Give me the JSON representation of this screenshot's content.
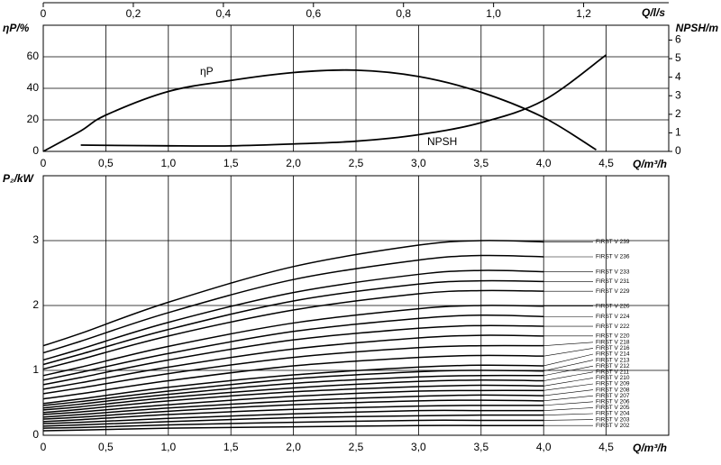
{
  "chart_data": [
    {
      "type": "line",
      "x_label": "Q/m³/h",
      "y_label": "ηP/%",
      "y2_label": "NPSH/m",
      "x2_label": "Q/l/s",
      "xlim": [
        0,
        5
      ],
      "xticks": [
        0,
        {
          "value": 0.5,
          "label": "0,5"
        },
        {
          "value": 1,
          "label": "1,0"
        },
        {
          "value": 1.5,
          "label": "1,5"
        },
        {
          "value": 2,
          "label": "2,0"
        },
        {
          "value": 2.5,
          "label": "2,5"
        },
        {
          "value": 3,
          "label": "3,0"
        },
        {
          "value": 3.5,
          "label": "3,5"
        },
        {
          "value": 4,
          "label": "4,0"
        },
        {
          "value": 4.5,
          "label": "4,5"
        }
      ],
      "x2lim": [
        0,
        1.389
      ],
      "x2ticks": [
        0,
        {
          "value": 0.2,
          "label": "0,2"
        },
        {
          "value": 0.4,
          "label": "0,4"
        },
        {
          "value": 0.6,
          "label": "0,6"
        },
        {
          "value": 0.8,
          "label": "0,8"
        },
        {
          "value": 1,
          "label": "1,0"
        },
        {
          "value": 1.2,
          "label": "1,2"
        }
      ],
      "ylim": [
        0,
        80
      ],
      "yticks": [
        0,
        20,
        40,
        60
      ],
      "y2lim": [
        0,
        6.8
      ],
      "y2ticks": [
        0,
        1,
        2,
        3,
        4,
        5,
        6
      ],
      "grid": true,
      "series": [
        {
          "name": "ηP",
          "color": "#000000",
          "x": [
            0,
            0.3,
            0.5,
            1,
            1.5,
            2,
            2.5,
            3,
            3.5,
            4,
            4.42
          ],
          "values": [
            0,
            13,
            23,
            38,
            45,
            50,
            51.5,
            47.5,
            37.5,
            21.5,
            1
          ]
        },
        {
          "name": "NPSH",
          "color": "#000000",
          "axis": "y2",
          "x": [
            0.3,
            1,
            1.5,
            2,
            2.5,
            3,
            3.5,
            4,
            4.5
          ],
          "values": [
            0.34,
            0.3,
            0.3,
            0.4,
            0.55,
            0.9,
            1.55,
            2.75,
            5.2
          ]
        }
      ]
    },
    {
      "type": "line",
      "x_label": "Q/m³/h",
      "y_label": "P₂/kW",
      "xlim": [
        0,
        5
      ],
      "xticks": [
        0,
        {
          "value": 0.5,
          "label": "0,5"
        },
        {
          "value": 1,
          "label": "1,0"
        },
        {
          "value": 1.5,
          "label": "1,5"
        },
        {
          "value": 2,
          "label": "2,0"
        },
        {
          "value": 2.5,
          "label": "2,5"
        },
        {
          "value": 3,
          "label": "3,0"
        },
        {
          "value": 3.5,
          "label": "3,5"
        },
        {
          "value": 4,
          "label": "4,0"
        },
        {
          "value": 4.5,
          "label": "4,5"
        }
      ],
      "ylim": [
        0,
        4
      ],
      "yticks": [
        0,
        1,
        2,
        3
      ],
      "grid": true,
      "x": [
        0,
        0.3,
        1,
        2,
        3,
        3.5,
        4
      ],
      "series": [
        {
          "name": "FIRST V 239",
          "color": "#000000",
          "values": [
            1.38,
            1.57,
            2.05,
            2.6,
            2.93,
            3.0,
            2.98
          ]
        },
        {
          "name": "FIRST V 236",
          "color": "#000000",
          "values": [
            1.27,
            1.45,
            1.89,
            2.4,
            2.7,
            2.77,
            2.75
          ]
        },
        {
          "name": "FIRST V 233",
          "color": "#000000",
          "values": [
            1.16,
            1.33,
            1.74,
            2.2,
            2.48,
            2.54,
            2.52
          ]
        },
        {
          "name": "FIRST V 231",
          "color": "#000000",
          "values": [
            1.09,
            1.25,
            1.63,
            2.07,
            2.33,
            2.38,
            2.37
          ]
        },
        {
          "name": "FIRST V 229",
          "color": "#000000",
          "values": [
            1.02,
            1.17,
            1.53,
            1.93,
            2.18,
            2.23,
            2.22
          ]
        },
        {
          "name": "FIRST V 226",
          "color": "#000000",
          "values": [
            0.92,
            1.05,
            1.37,
            1.73,
            1.95,
            2.0,
            1.99
          ]
        },
        {
          "name": "FIRST V 224",
          "color": "#000000",
          "values": [
            0.85,
            0.97,
            1.26,
            1.6,
            1.8,
            1.85,
            1.83
          ]
        },
        {
          "name": "FIRST V 222",
          "color": "#000000",
          "values": [
            0.78,
            0.89,
            1.16,
            1.47,
            1.65,
            1.69,
            1.68
          ]
        },
        {
          "name": "FIRST V 220",
          "color": "#000000",
          "values": [
            0.71,
            0.81,
            1.05,
            1.33,
            1.5,
            1.54,
            1.53
          ]
        },
        {
          "name": "FIRST V 218",
          "color": "#000000",
          "values": [
            0.64,
            0.73,
            0.95,
            1.2,
            1.35,
            1.38,
            1.38
          ]
        },
        {
          "name": "FIRST V 216",
          "color": "#000000",
          "values": [
            0.56,
            0.64,
            0.84,
            1.07,
            1.2,
            1.23,
            1.22
          ]
        },
        {
          "name": "FIRST V 214",
          "color": "#000000",
          "values": [
            0.49,
            0.56,
            0.74,
            0.93,
            1.05,
            1.08,
            1.07
          ]
        },
        {
          "name": "FIRST V 213",
          "color": "#000000",
          "values": [
            0.46,
            0.52,
            0.68,
            0.87,
            0.98,
            1.0,
            0.99
          ]
        },
        {
          "name": "FIRST V 212",
          "color": "#000000",
          "values": [
            0.42,
            0.48,
            0.63,
            0.8,
            0.9,
            0.92,
            0.92
          ]
        },
        {
          "name": "FIRST V 211",
          "color": "#000000",
          "values": [
            0.39,
            0.44,
            0.58,
            0.73,
            0.83,
            0.85,
            0.84
          ]
        },
        {
          "name": "FIRST V 210",
          "color": "#000000",
          "values": [
            0.35,
            0.4,
            0.53,
            0.67,
            0.75,
            0.77,
            0.76
          ]
        },
        {
          "name": "FIRST V 209",
          "color": "#000000",
          "values": [
            0.32,
            0.36,
            0.47,
            0.6,
            0.68,
            0.69,
            0.69
          ]
        },
        {
          "name": "FIRST V 208",
          "color": "#000000",
          "values": [
            0.28,
            0.32,
            0.42,
            0.53,
            0.6,
            0.62,
            0.61
          ]
        },
        {
          "name": "FIRST V 207",
          "color": "#000000",
          "values": [
            0.25,
            0.28,
            0.37,
            0.47,
            0.53,
            0.54,
            0.53
          ]
        },
        {
          "name": "FIRST V 206",
          "color": "#000000",
          "values": [
            0.21,
            0.24,
            0.32,
            0.4,
            0.45,
            0.46,
            0.46
          ]
        },
        {
          "name": "FIRST V 205",
          "color": "#000000",
          "values": [
            0.18,
            0.2,
            0.26,
            0.33,
            0.38,
            0.38,
            0.38
          ]
        },
        {
          "name": "FIRST V 204",
          "color": "#000000",
          "values": [
            0.14,
            0.16,
            0.21,
            0.27,
            0.3,
            0.31,
            0.31
          ]
        },
        {
          "name": "FIRST V 203",
          "color": "#000000",
          "values": [
            0.11,
            0.12,
            0.16,
            0.2,
            0.23,
            0.23,
            0.23
          ]
        },
        {
          "name": "FIRST V 202",
          "color": "#000000",
          "values": [
            0.07,
            0.08,
            0.11,
            0.13,
            0.15,
            0.15,
            0.15
          ]
        }
      ]
    }
  ]
}
